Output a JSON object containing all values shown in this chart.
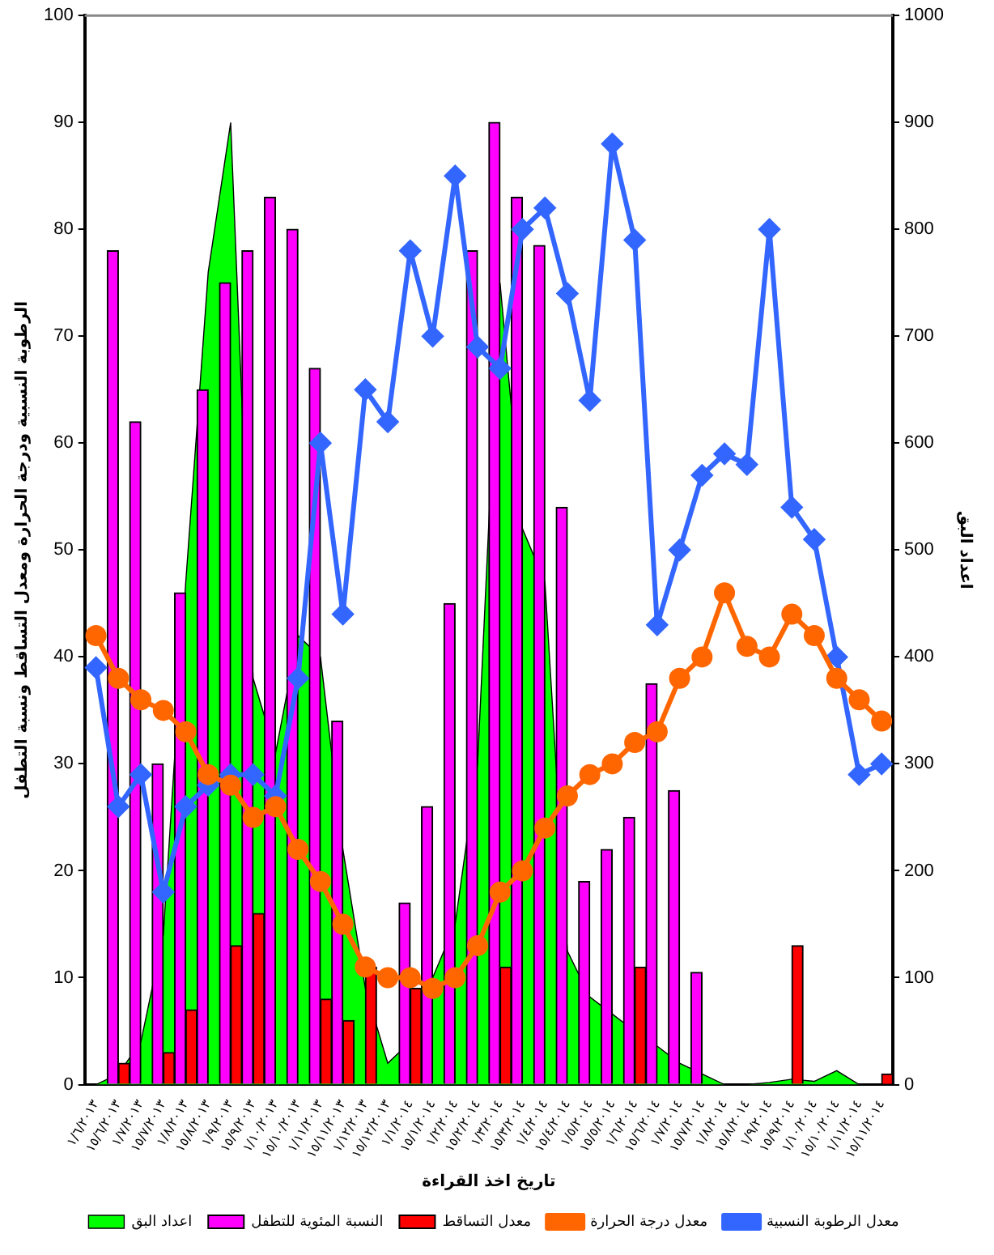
{
  "chart_data": {
    "type": "bar",
    "xlabel": "تاريخ اخذ القراءة",
    "ylabel": "الرطوبة النسبية ودرجة الحرارة ومعدل التساقط ونسبة التطفل",
    "y2label": "اعداد البق",
    "categories": [
      "١/٦/٢٠١٣",
      "١٥/٦/٢٠١٣",
      "١/٧/٢٠١٣",
      "١٥/٧/٢٠١٣",
      "١/٨/٢٠١٣",
      "١٥/٨/٢٠١٣",
      "١/٩/٢٠١٣",
      "١٥/٩/٢٠١٣",
      "١/١٠/٢٠١٣",
      "١٥/١٠/٢٠١٣",
      "١/١١/٢٠١٣",
      "١٥/١١/٢٠١٣",
      "١/١٢/٢٠١٣",
      "١٥/١٢/٢٠١٣",
      "١/١/٢٠١٤",
      "١٥/١/٢٠١٤",
      "١/٢/٢٠١٤",
      "١٥/٢/٢٠١٤",
      "١/٣/٢٠١٤",
      "١٥/٣/٢٠١٤",
      "١/٤/٢٠١٤",
      "١٥/٤/٢٠١٤",
      "١/٥/٢٠١٤",
      "١٥/٥/٢٠١٤",
      "١/٦/٢٠١٤",
      "١٥/٦/٢٠١٤",
      "١/٧/٢٠١٤",
      "١٥/٧/٢٠١٤",
      "١/٨/٢٠١٤",
      "١٥/٨/٢٠١٤",
      "١/٩/٢٠١٤",
      "١٥/٩/٢٠١٤",
      "١/١٠/٢٠١٤",
      "١٥/١٠/٢٠١٤",
      "١/١١/٢٠١٤",
      "١٥/١١/٢٠١٤"
    ],
    "series": [
      {
        "name": "اعداد البق",
        "type": "area",
        "axis": "y2",
        "color": "#00ff00",
        "values": [
          0,
          10,
          40,
          140,
          470,
          760,
          900,
          380,
          310,
          420,
          400,
          220,
          90,
          20,
          40,
          100,
          150,
          300,
          750,
          520,
          470,
          125,
          82,
          66,
          50,
          36,
          20,
          10,
          0,
          0,
          2,
          5,
          3,
          13,
          0,
          0
        ]
      },
      {
        "name": "النسبة المئوية للتطفل",
        "color": "#ff00ff",
        "values": [
          null,
          78,
          62,
          30,
          46,
          65,
          75,
          78,
          83,
          80,
          67,
          34,
          null,
          null,
          17,
          26,
          45,
          78,
          90,
          83,
          78.5,
          54,
          19,
          22,
          25,
          37.5,
          27.5,
          10.5,
          null,
          null,
          null,
          null,
          null,
          null,
          null,
          null
        ]
      },
      {
        "name": "معدل التساقط",
        "color": "#ff0000",
        "values": [
          null,
          2,
          null,
          3,
          7,
          null,
          13,
          16,
          null,
          null,
          8,
          6,
          11,
          null,
          9,
          null,
          null,
          null,
          11,
          null,
          null,
          null,
          null,
          null,
          11,
          null,
          null,
          null,
          null,
          null,
          null,
          13,
          null,
          null,
          null,
          1
        ]
      },
      {
        "name": "معدل درجة الحرارة",
        "type": "line",
        "marker": "circle",
        "color": "#ff6600",
        "values": [
          42,
          38,
          36,
          35,
          33,
          29,
          28,
          25,
          26,
          22,
          19,
          15,
          11,
          10,
          10,
          9,
          10,
          13,
          18,
          20,
          24,
          27,
          29,
          30,
          32,
          33,
          38,
          40,
          46,
          41,
          40,
          44,
          42,
          38,
          36,
          34
        ]
      },
      {
        "name": "معدل الرطوبة النسبية",
        "type": "line",
        "marker": "diamond",
        "color": "#3366ff",
        "values": [
          39,
          26,
          29,
          18,
          26,
          28,
          29,
          29,
          27,
          38,
          60,
          44,
          65,
          62,
          78,
          70,
          85,
          69,
          67,
          80,
          82,
          74,
          64,
          88,
          79,
          43,
          50,
          57,
          59,
          58,
          80,
          54,
          51,
          40,
          29,
          30
        ]
      }
    ],
    "ylim": [
      0,
      100
    ],
    "yticks": [
      0,
      10,
      20,
      30,
      40,
      50,
      60,
      70,
      80,
      90,
      100
    ],
    "y2lim": [
      0,
      1000
    ],
    "y2ticks": [
      0,
      100,
      200,
      300,
      400,
      500,
      600,
      700,
      800,
      900,
      1000
    ],
    "grid": false,
    "legend": "bottom"
  }
}
